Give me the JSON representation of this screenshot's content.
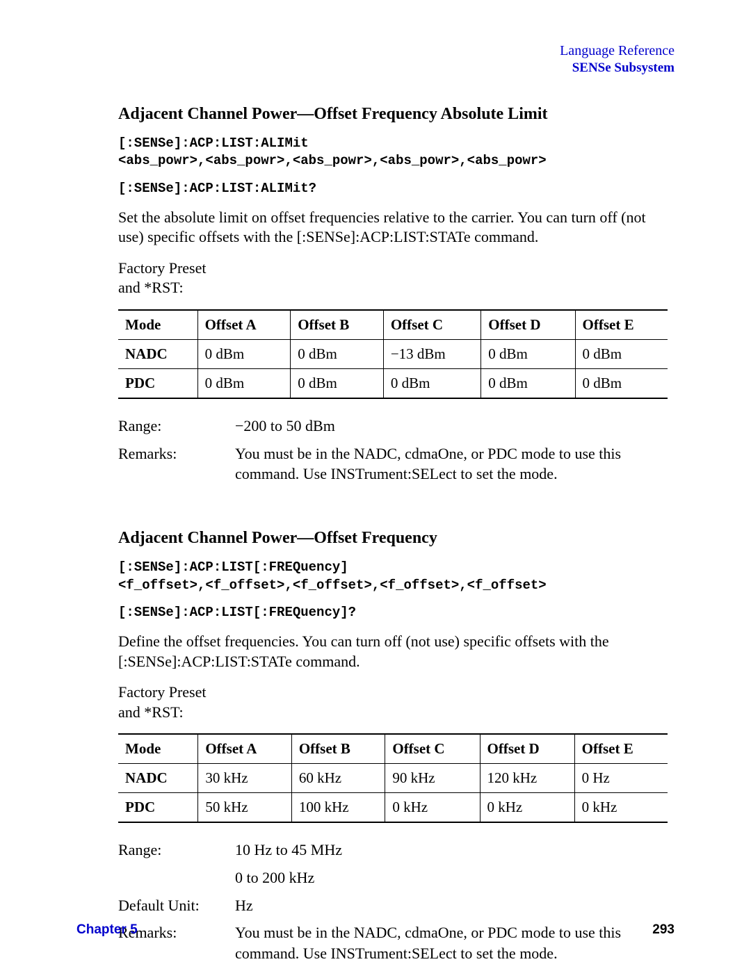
{
  "header": {
    "topline": "Language Reference",
    "subline": "SENSe Subsystem"
  },
  "section1": {
    "title": "Adjacent Channel Power—Offset Frequency Absolute Limit",
    "code1": "[:SENSe]:ACP:LIST:ALIMit\n<abs_powr>,<abs_powr>,<abs_powr>,<abs_powr>,<abs_powr>",
    "code2": "[:SENSe]:ACP:LIST:ALIMit?",
    "para1": "Set the absolute limit on offset frequencies relative to the carrier. You can turn off (not use) specific offsets with the [:SENSe]:ACP:LIST:STATe command.",
    "para2": "Factory Preset\nand *RST:",
    "table": {
      "columns": [
        "Mode",
        "Offset A",
        "Offset B",
        "Offset C",
        "Offset D",
        "Offset E"
      ],
      "rows": [
        [
          "NADC",
          "0 dBm",
          "0 dBm",
          "−13 dBm",
          "0 dBm",
          "0 dBm"
        ],
        [
          "PDC",
          "0 dBm",
          "0 dBm",
          "0 dBm",
          "0 dBm",
          "0 dBm"
        ]
      ]
    },
    "defs": [
      {
        "label": "Range:",
        "value": "−200 to 50 dBm"
      },
      {
        "label": "Remarks:",
        "value": "You must be in the NADC, cdmaOne, or PDC mode to use this command. Use INSTrument:SELect to set the mode."
      }
    ]
  },
  "section2": {
    "title": "Adjacent Channel Power—Offset Frequency",
    "code1": "[:SENSe]:ACP:LIST[:FREQuency]\n<f_offset>,<f_offset>,<f_offset>,<f_offset>,<f_offset>",
    "code2": "[:SENSe]:ACP:LIST[:FREQuency]?",
    "para1": "Define the offset frequencies. You can turn off (not use) specific offsets with the [:SENSe]:ACP:LIST:STATe command.",
    "para2": "Factory Preset\nand *RST:",
    "table": {
      "columns": [
        "Mode",
        "Offset A",
        "Offset B",
        "Offset C",
        "Offset D",
        "Offset E"
      ],
      "rows": [
        [
          "NADC",
          "30 kHz",
          "60 kHz",
          "90 kHz",
          "120 kHz",
          "0 Hz"
        ],
        [
          "PDC",
          "50 kHz",
          "100 kHz",
          "0 kHz",
          "0 kHz",
          "0 kHz"
        ]
      ]
    },
    "defs": [
      {
        "label": "Range:",
        "value": "10 Hz to 45 MHz"
      },
      {
        "label": "",
        "value": "0 to 200 kHz"
      },
      {
        "label": "Default Unit:",
        "value": "Hz"
      },
      {
        "label": "Remarks:",
        "value": "You must be in the NADC, cdmaOne, or PDC mode to use this command. Use INSTrument:SELect to set the mode."
      }
    ]
  },
  "footer": {
    "chapter": "Chapter 5",
    "page": "293"
  }
}
